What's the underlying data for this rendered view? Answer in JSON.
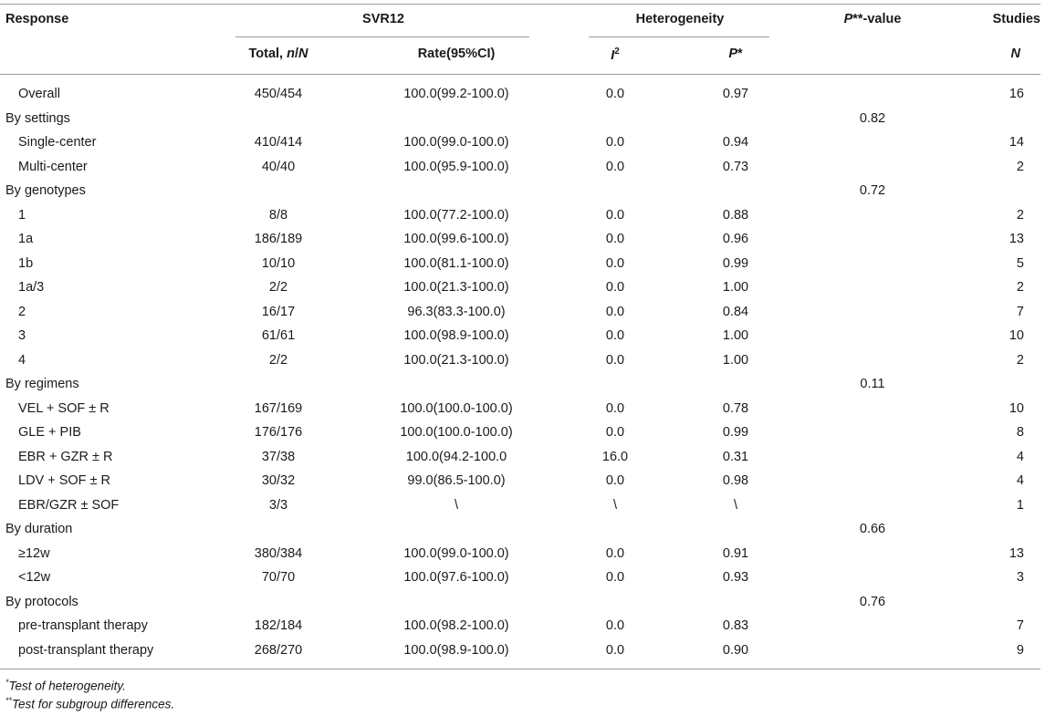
{
  "headers": {
    "response": "Response",
    "svr12": "SVR12",
    "heterogeneity": "Heterogeneity",
    "pvalue": "P**-value",
    "studies": "Studies",
    "total": "Total, n/N",
    "rate": "Rate(95%CI)",
    "i2": "I2",
    "pstar": "P*",
    "n": "N"
  },
  "rows": [
    {
      "label": "Overall",
      "group": false,
      "total": "450/454",
      "rate": "100.0(99.2-100.0)",
      "i2": "0.0",
      "p": "0.97",
      "p2": "",
      "n": "16"
    },
    {
      "label": "By settings",
      "group": true,
      "total": "",
      "rate": "",
      "i2": "",
      "p": "",
      "p2": "0.82",
      "n": ""
    },
    {
      "label": "Single-center",
      "group": false,
      "total": "410/414",
      "rate": "100.0(99.0-100.0)",
      "i2": "0.0",
      "p": "0.94",
      "p2": "",
      "n": "14"
    },
    {
      "label": "Multi-center",
      "group": false,
      "total": "40/40",
      "rate": "100.0(95.9-100.0)",
      "i2": "0.0",
      "p": "0.73",
      "p2": "",
      "n": "2"
    },
    {
      "label": "By genotypes",
      "group": true,
      "total": "",
      "rate": "",
      "i2": "",
      "p": "",
      "p2": "0.72",
      "n": ""
    },
    {
      "label": "1",
      "group": false,
      "total": "8/8",
      "rate": "100.0(77.2-100.0)",
      "i2": "0.0",
      "p": "0.88",
      "p2": "",
      "n": "2"
    },
    {
      "label": "1a",
      "group": false,
      "total": "186/189",
      "rate": "100.0(99.6-100.0)",
      "i2": "0.0",
      "p": "0.96",
      "p2": "",
      "n": "13"
    },
    {
      "label": "1b",
      "group": false,
      "total": "10/10",
      "rate": "100.0(81.1-100.0)",
      "i2": "0.0",
      "p": "0.99",
      "p2": "",
      "n": "5"
    },
    {
      "label": "1a/3",
      "group": false,
      "total": "2/2",
      "rate": "100.0(21.3-100.0)",
      "i2": "0.0",
      "p": "1.00",
      "p2": "",
      "n": "2"
    },
    {
      "label": "2",
      "group": false,
      "total": "16/17",
      "rate": "96.3(83.3-100.0)",
      "i2": "0.0",
      "p": "0.84",
      "p2": "",
      "n": "7"
    },
    {
      "label": "3",
      "group": false,
      "total": "61/61",
      "rate": "100.0(98.9-100.0)",
      "i2": "0.0",
      "p": "1.00",
      "p2": "",
      "n": "10"
    },
    {
      "label": "4",
      "group": false,
      "total": "2/2",
      "rate": "100.0(21.3-100.0)",
      "i2": "0.0",
      "p": "1.00",
      "p2": "",
      "n": "2"
    },
    {
      "label": "By regimens",
      "group": true,
      "total": "",
      "rate": "",
      "i2": "",
      "p": "",
      "p2": "0.11",
      "n": ""
    },
    {
      "label": "VEL + SOF ± R",
      "group": false,
      "total": "167/169",
      "rate": "100.0(100.0-100.0)",
      "i2": "0.0",
      "p": "0.78",
      "p2": "",
      "n": "10"
    },
    {
      "label": "GLE + PIB",
      "group": false,
      "total": "176/176",
      "rate": "100.0(100.0-100.0)",
      "i2": "0.0",
      "p": "0.99",
      "p2": "",
      "n": "8"
    },
    {
      "label": "EBR + GZR ± R",
      "group": false,
      "total": "37/38",
      "rate": "100.0(94.2-100.0",
      "i2": "16.0",
      "p": "0.31",
      "p2": "",
      "n": "4"
    },
    {
      "label": "LDV + SOF ± R",
      "group": false,
      "total": "30/32",
      "rate": "99.0(86.5-100.0)",
      "i2": "0.0",
      "p": "0.98",
      "p2": "",
      "n": "4"
    },
    {
      "label": "EBR/GZR ± SOF",
      "group": false,
      "total": "3/3",
      "rate": "\\",
      "i2": "\\",
      "p": "\\",
      "p2": "",
      "n": "1"
    },
    {
      "label": "By duration",
      "group": true,
      "total": "",
      "rate": "",
      "i2": "",
      "p": "",
      "p2": "0.66",
      "n": ""
    },
    {
      "label": "≥12w",
      "group": false,
      "total": "380/384",
      "rate": "100.0(99.0-100.0)",
      "i2": "0.0",
      "p": "0.91",
      "p2": "",
      "n": "13"
    },
    {
      "label": "<12w",
      "group": false,
      "total": "70/70",
      "rate": "100.0(97.6-100.0)",
      "i2": "0.0",
      "p": "0.93",
      "p2": "",
      "n": "3"
    },
    {
      "label": "By protocols",
      "group": true,
      "total": "",
      "rate": "",
      "i2": "",
      "p": "",
      "p2": "0.76",
      "n": ""
    },
    {
      "label": "pre-transplant therapy",
      "group": false,
      "total": "182/184",
      "rate": "100.0(98.2-100.0)",
      "i2": "0.0",
      "p": "0.83",
      "p2": "",
      "n": "7"
    },
    {
      "label": "post-transplant therapy",
      "group": false,
      "total": "268/270",
      "rate": "100.0(98.9-100.0)",
      "i2": "0.0",
      "p": "0.90",
      "p2": "",
      "n": "9"
    }
  ],
  "footnotes": [
    {
      "mark": "*",
      "text": "Test of heterogeneity."
    },
    {
      "mark": "**",
      "text": "Test for subgroup differences."
    }
  ]
}
